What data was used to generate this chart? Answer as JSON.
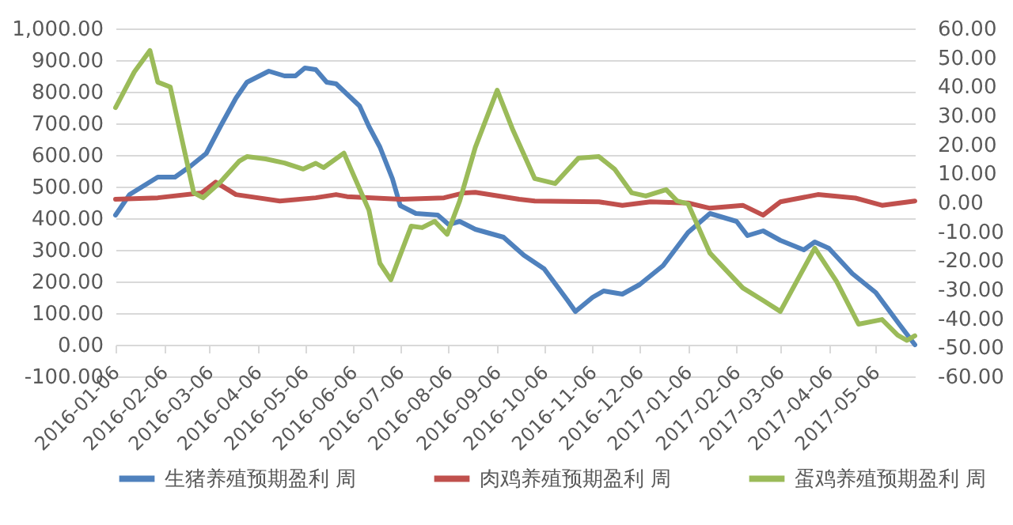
{
  "chart_data": {
    "type": "line",
    "xlim": [
      "2016-01-06",
      "2017-05-31"
    ],
    "xticks": [
      "2016-01-06",
      "2016-02-06",
      "2016-03-06",
      "2016-04-06",
      "2016-05-06",
      "2016-06-06",
      "2016-07-06",
      "2016-08-06",
      "2016-09-06",
      "2016-10-06",
      "2016-11-06",
      "2016-12-06",
      "2017-01-06",
      "2017-02-06",
      "2017-03-06",
      "2017-04-06",
      "2017-05-06"
    ],
    "ylim": [
      -100,
      1000
    ],
    "yticks": [
      {
        "value": -100,
        "label": "-100.00"
      },
      {
        "value": 0,
        "label": "0.00"
      },
      {
        "value": 100,
        "label": "100.00"
      },
      {
        "value": 200,
        "label": "200.00"
      },
      {
        "value": 300,
        "label": "300.00"
      },
      {
        "value": 400,
        "label": "400.00"
      },
      {
        "value": 500,
        "label": "500.00"
      },
      {
        "value": 600,
        "label": "600.00"
      },
      {
        "value": 700,
        "label": "700.00"
      },
      {
        "value": 800,
        "label": "800.00"
      },
      {
        "value": 900,
        "label": "900.00"
      },
      {
        "value": 1000,
        "label": "1,000.00"
      }
    ],
    "y2lim": [
      -60,
      60
    ],
    "y2ticks": [
      {
        "value": -60,
        "label": "-60.00"
      },
      {
        "value": -50,
        "label": "-50.00"
      },
      {
        "value": -40,
        "label": "-40.00"
      },
      {
        "value": -30,
        "label": "-30.00"
      },
      {
        "value": -20,
        "label": "-20.00"
      },
      {
        "value": -10,
        "label": "-10.00"
      },
      {
        "value": 0,
        "label": "0.00"
      },
      {
        "value": 10,
        "label": "10.00"
      },
      {
        "value": 20,
        "label": "20.00"
      },
      {
        "value": 30,
        "label": "30.00"
      },
      {
        "value": 40,
        "label": "40.00"
      },
      {
        "value": 50,
        "label": "50.00"
      },
      {
        "value": 60,
        "label": "60.00"
      }
    ],
    "grid": "y",
    "legend": "bottom",
    "series": [
      {
        "name": "生猪养殖预期盈利 周",
        "color": "#4f81bd",
        "x": [
          "2016-01-06",
          "2016-01-15",
          "2016-02-02",
          "2016-02-13",
          "2016-02-23",
          "2016-03-04",
          "2016-03-13",
          "2016-03-23",
          "2016-03-30",
          "2016-04-13",
          "2016-04-23",
          "2016-04-30",
          "2016-05-06",
          "2016-05-13",
          "2016-05-20",
          "2016-05-26",
          "2016-06-10",
          "2016-06-16",
          "2016-06-23",
          "2016-07-01",
          "2016-07-06",
          "2016-07-16",
          "2016-07-30",
          "2016-08-06",
          "2016-08-13",
          "2016-08-23",
          "2016-09-10",
          "2016-09-23",
          "2016-10-06",
          "2016-10-21",
          "2016-10-26",
          "2016-11-06",
          "2016-11-13",
          "2016-11-25",
          "2016-12-06",
          "2016-12-21",
          "2017-01-06",
          "2017-01-20",
          "2017-02-06",
          "2017-02-13",
          "2017-02-23",
          "2017-03-06",
          "2017-03-21",
          "2017-03-28",
          "2017-04-06",
          "2017-04-21",
          "2017-05-06",
          "2017-05-21",
          "2017-05-31"
        ],
        "values": [
          410,
          475,
          530,
          530,
          565,
          605,
          690,
          780,
          830,
          865,
          850,
          850,
          875,
          870,
          830,
          825,
          755,
          690,
          625,
          525,
          440,
          415,
          410,
          380,
          390,
          365,
          340,
          283,
          240,
          140,
          105,
          150,
          170,
          160,
          190,
          250,
          355,
          415,
          390,
          345,
          360,
          330,
          300,
          325,
          305,
          225,
          165,
          65,
          0
        ]
      },
      {
        "name": "肉鸡养殖预期盈利 周",
        "color": "#c0504d",
        "axis": "y2",
        "x": [
          "2016-01-06",
          "2016-02-02",
          "2016-03-01",
          "2016-03-10",
          "2016-03-23",
          "2016-04-20",
          "2016-05-13",
          "2016-05-26",
          "2016-06-02",
          "2016-07-06",
          "2016-08-03",
          "2016-08-16",
          "2016-08-23",
          "2016-09-20",
          "2016-09-30",
          "2016-11-10",
          "2016-11-25",
          "2016-12-13",
          "2017-01-06",
          "2017-01-20",
          "2017-02-10",
          "2017-02-23",
          "2017-03-06",
          "2017-03-30",
          "2017-04-23",
          "2017-05-10",
          "2017-05-31"
        ],
        "values": [
          1.1,
          1.6,
          3.3,
          7,
          2.7,
          0.5,
          1.6,
          2.7,
          2,
          1.1,
          1.6,
          3.3,
          3.5,
          1.1,
          0.5,
          0.2,
          -1,
          0.2,
          -0.2,
          -2,
          -1,
          -4.4,
          0.2,
          2.7,
          1.5,
          -1,
          0.5
        ]
      },
      {
        "name": "蛋鸡养殖预期盈利 周",
        "color": "#9bbb59",
        "axis": "y2",
        "x": [
          "2016-01-06",
          "2016-01-18",
          "2016-01-28",
          "2016-02-02",
          "2016-02-10",
          "2016-02-25",
          "2016-03-02",
          "2016-03-13",
          "2016-03-25",
          "2016-03-30",
          "2016-04-11",
          "2016-04-23",
          "2016-05-05",
          "2016-05-13",
          "2016-05-18",
          "2016-05-31",
          "2016-06-16",
          "2016-06-23",
          "2016-06-30",
          "2016-07-13",
          "2016-07-20",
          "2016-07-28",
          "2016-08-05",
          "2016-08-13",
          "2016-08-23",
          "2016-09-06",
          "2016-09-16",
          "2016-09-30",
          "2016-10-13",
          "2016-10-28",
          "2016-11-10",
          "2016-11-20",
          "2016-12-01",
          "2016-12-10",
          "2016-12-23",
          "2016-12-30",
          "2017-01-06",
          "2017-01-20",
          "2017-02-10",
          "2017-02-23",
          "2017-03-06",
          "2017-03-28",
          "2017-04-11",
          "2017-04-25",
          "2017-05-10",
          "2017-05-20",
          "2017-05-26",
          "2017-05-31"
        ],
        "values": [
          32.7,
          45,
          52.4,
          41.5,
          39.8,
          3.3,
          1.6,
          7,
          14.2,
          15.8,
          15,
          13.6,
          11.5,
          13.5,
          12,
          17,
          -2.7,
          -21,
          -26.7,
          -8.2,
          -8.7,
          -6.5,
          -11,
          0.5,
          19,
          38.7,
          25,
          8.2,
          6.5,
          15.3,
          15.8,
          11.5,
          3.3,
          2.2,
          4.4,
          0.5,
          -0.5,
          -17.5,
          -29.5,
          -33.8,
          -37.6,
          -15.8,
          -27.3,
          -42,
          -40.4,
          -45.8,
          -47.6,
          -46
        ]
      }
    ]
  }
}
